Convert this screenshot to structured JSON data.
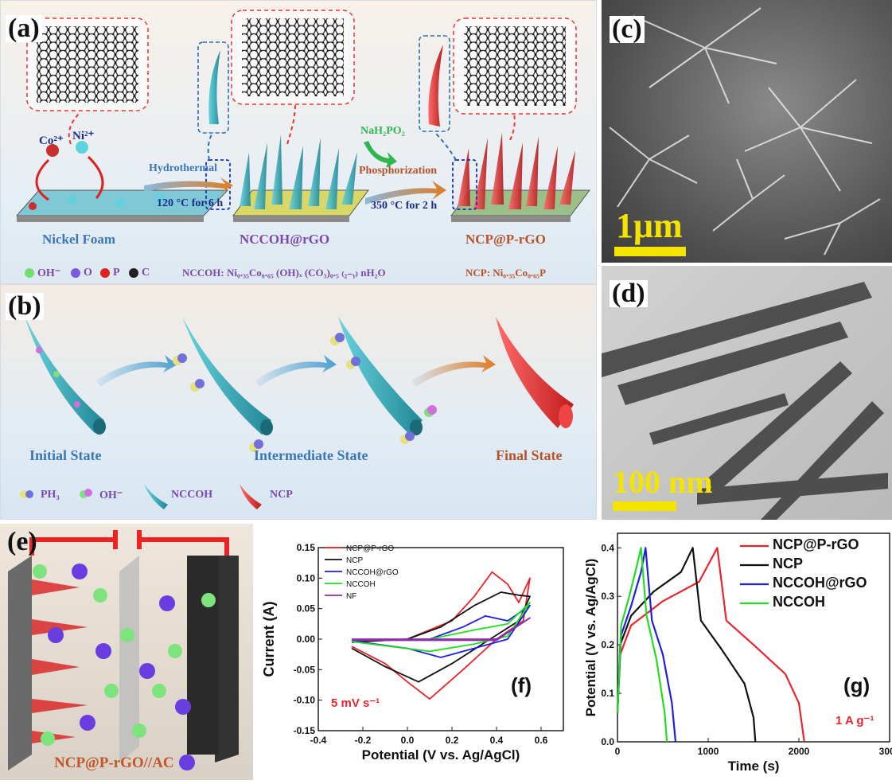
{
  "panel_a": {
    "label": "(a)",
    "ions": {
      "co": "Co²⁺",
      "ni": "Ni²⁺"
    },
    "arrow1_top": "Hydrothermal",
    "arrow1_bottom": "120 °C for 6 h",
    "reagent": "NaH₂PO₂",
    "arrow2_top": "Phosphorization",
    "arrow2_bottom": "350 °C for 2 h",
    "stage1": "Nickel Foam",
    "stage2": "NCCOH@rGO",
    "stage3": "NCP@P-rGO",
    "legend": {
      "oh": "OH⁻",
      "o": "O",
      "p": "P",
      "c": "C"
    },
    "formula_nccoh": "NCCOH: Ni₀.₃₅Co₀.₆₅ (OH)ₓ (CO₃)₀.₅ ₍₂₋ᵧ₎ nH₂O",
    "formula_ncp": "NCP: Ni₀.₃₅Co₀.₆₅P"
  },
  "panel_b": {
    "label": "(b)",
    "state1": "Initial State",
    "state2": "Intermediate State",
    "state3": "Final State",
    "legend": {
      "ph3": "PH₃",
      "oh": "OH⁻",
      "nccoh": "NCCOH",
      "ncp": "NCP"
    }
  },
  "panel_c": {
    "label": "(c)",
    "scale": "1μm"
  },
  "panel_d": {
    "label": "(d)",
    "scale": "100 nm"
  },
  "panel_e": {
    "label": "(e)",
    "caption": "NCP@P-rGO//AC"
  },
  "colors": {
    "ncp": "#e8242c",
    "ncp_nccoh": "#000000",
    "nccoh_rgo": "#1f1fe0",
    "nccoh": "#22dd22",
    "nf": "#8b2fa8",
    "tip_cyan": "#2aa3b5",
    "tip_red": "#d22a2a"
  },
  "chart_data": [
    {
      "panel": "(f)",
      "type": "line",
      "xlabel": "Potential (V vs. Ag/AgCl)",
      "ylabel": "Current (A)",
      "xlim": [
        -0.4,
        0.7
      ],
      "ylim": [
        -0.15,
        0.15
      ],
      "xticks": [
        "-0.4",
        "-0.2",
        "0.0",
        "0.2",
        "0.4",
        "0.6"
      ],
      "yticks": [
        "-0.15",
        "-0.10",
        "-0.05",
        "0.00",
        "0.05",
        "0.10",
        "0.15"
      ],
      "annotation": "5 mV s⁻¹",
      "panel_label": "(f)",
      "legend_position": "top-left",
      "series": [
        {
          "name": "NCP@P-rGO",
          "color": "#e8242c",
          "upper": [
            [
              -0.25,
              -0.005
            ],
            [
              0.0,
              0.0
            ],
            [
              0.2,
              0.03
            ],
            [
              0.3,
              0.07
            ],
            [
              0.38,
              0.11
            ],
            [
              0.45,
              0.09
            ],
            [
              0.5,
              0.06
            ],
            [
              0.55,
              0.1
            ]
          ],
          "lower": [
            [
              0.55,
              0.1
            ],
            [
              0.52,
              0.03
            ],
            [
              0.4,
              0.0
            ],
            [
              0.25,
              -0.05
            ],
            [
              0.1,
              -0.098
            ],
            [
              0.0,
              -0.07
            ],
            [
              -0.1,
              -0.04
            ],
            [
              -0.25,
              -0.012
            ]
          ]
        },
        {
          "name": "NCP",
          "color": "#111111",
          "upper": [
            [
              -0.25,
              -0.005
            ],
            [
              0.0,
              0.0
            ],
            [
              0.15,
              0.02
            ],
            [
              0.3,
              0.055
            ],
            [
              0.42,
              0.077
            ],
            [
              0.5,
              0.072
            ],
            [
              0.55,
              0.07
            ]
          ],
          "lower": [
            [
              0.55,
              0.07
            ],
            [
              0.5,
              0.03
            ],
            [
              0.35,
              -0.005
            ],
            [
              0.2,
              -0.04
            ],
            [
              0.05,
              -0.07
            ],
            [
              -0.1,
              -0.045
            ],
            [
              -0.25,
              -0.015
            ]
          ]
        },
        {
          "name": "NCCOH@rGO",
          "color": "#1f1fe0",
          "upper": [
            [
              -0.25,
              -0.002
            ],
            [
              0.1,
              0.0
            ],
            [
              0.25,
              0.02
            ],
            [
              0.35,
              0.038
            ],
            [
              0.45,
              0.03
            ],
            [
              0.55,
              0.055
            ]
          ],
          "lower": [
            [
              0.55,
              0.055
            ],
            [
              0.45,
              0.0
            ],
            [
              0.3,
              -0.015
            ],
            [
              0.15,
              -0.03
            ],
            [
              0.0,
              -0.015
            ],
            [
              -0.25,
              -0.003
            ]
          ]
        },
        {
          "name": "NCCOH",
          "color": "#22dd22",
          "upper": [
            [
              -0.25,
              -0.002
            ],
            [
              0.1,
              0.0
            ],
            [
              0.3,
              0.015
            ],
            [
              0.45,
              0.025
            ],
            [
              0.55,
              0.06
            ]
          ],
          "lower": [
            [
              0.55,
              0.06
            ],
            [
              0.45,
              0.005
            ],
            [
              0.3,
              -0.008
            ],
            [
              0.1,
              -0.02
            ],
            [
              -0.25,
              -0.004
            ]
          ]
        },
        {
          "name": "NF",
          "color": "#8b2fa8",
          "upper": [
            [
              -0.25,
              0.0
            ],
            [
              0.4,
              0.0
            ],
            [
              0.55,
              0.035
            ]
          ],
          "lower": [
            [
              0.55,
              0.035
            ],
            [
              0.4,
              -0.002
            ],
            [
              -0.25,
              -0.002
            ]
          ]
        }
      ]
    },
    {
      "panel": "(g)",
      "type": "line",
      "xlabel": "Time (s)",
      "ylabel": "Potential (V vs. Ag/AgCl)",
      "xlim": [
        0,
        3000
      ],
      "ylim": [
        0,
        0.43
      ],
      "xticks": [
        "0",
        "1000",
        "2000",
        "3000"
      ],
      "yticks": [
        "0.0",
        "0.1",
        "0.2",
        "0.3",
        "0.4"
      ],
      "annotation": "1 A g⁻¹",
      "panel_label": "(g)",
      "legend_position": "top-right",
      "series": [
        {
          "name": "NCP@P-rGO",
          "color": "#e8242c",
          "points": [
            [
              0,
              0.06
            ],
            [
              30,
              0.18
            ],
            [
              150,
              0.24
            ],
            [
              500,
              0.29
            ],
            [
              900,
              0.33
            ],
            [
              1100,
              0.4
            ],
            [
              1200,
              0.25
            ],
            [
              1500,
              0.2
            ],
            [
              1850,
              0.14
            ],
            [
              2000,
              0.08
            ],
            [
              2060,
              0.0
            ]
          ]
        },
        {
          "name": "NCP",
          "color": "#111111",
          "points": [
            [
              0,
              0.06
            ],
            [
              30,
              0.2
            ],
            [
              150,
              0.26
            ],
            [
              400,
              0.31
            ],
            [
              700,
              0.35
            ],
            [
              830,
              0.4
            ],
            [
              920,
              0.25
            ],
            [
              1150,
              0.19
            ],
            [
              1400,
              0.12
            ],
            [
              1500,
              0.05
            ],
            [
              1520,
              0.0
            ]
          ]
        },
        {
          "name": "NCCOH@rGO",
          "color": "#1f1fe0",
          "points": [
            [
              0,
              0.06
            ],
            [
              40,
              0.22
            ],
            [
              150,
              0.28
            ],
            [
              260,
              0.35
            ],
            [
              310,
              0.4
            ],
            [
              380,
              0.25
            ],
            [
              500,
              0.18
            ],
            [
              600,
              0.08
            ],
            [
              640,
              0.0
            ]
          ]
        },
        {
          "name": "NCCOH",
          "color": "#22dd22",
          "points": [
            [
              0,
              0.06
            ],
            [
              40,
              0.24
            ],
            [
              130,
              0.3
            ],
            [
              210,
              0.36
            ],
            [
              260,
              0.4
            ],
            [
              320,
              0.26
            ],
            [
              430,
              0.17
            ],
            [
              520,
              0.06
            ],
            [
              545,
              0.0
            ]
          ]
        }
      ]
    }
  ]
}
